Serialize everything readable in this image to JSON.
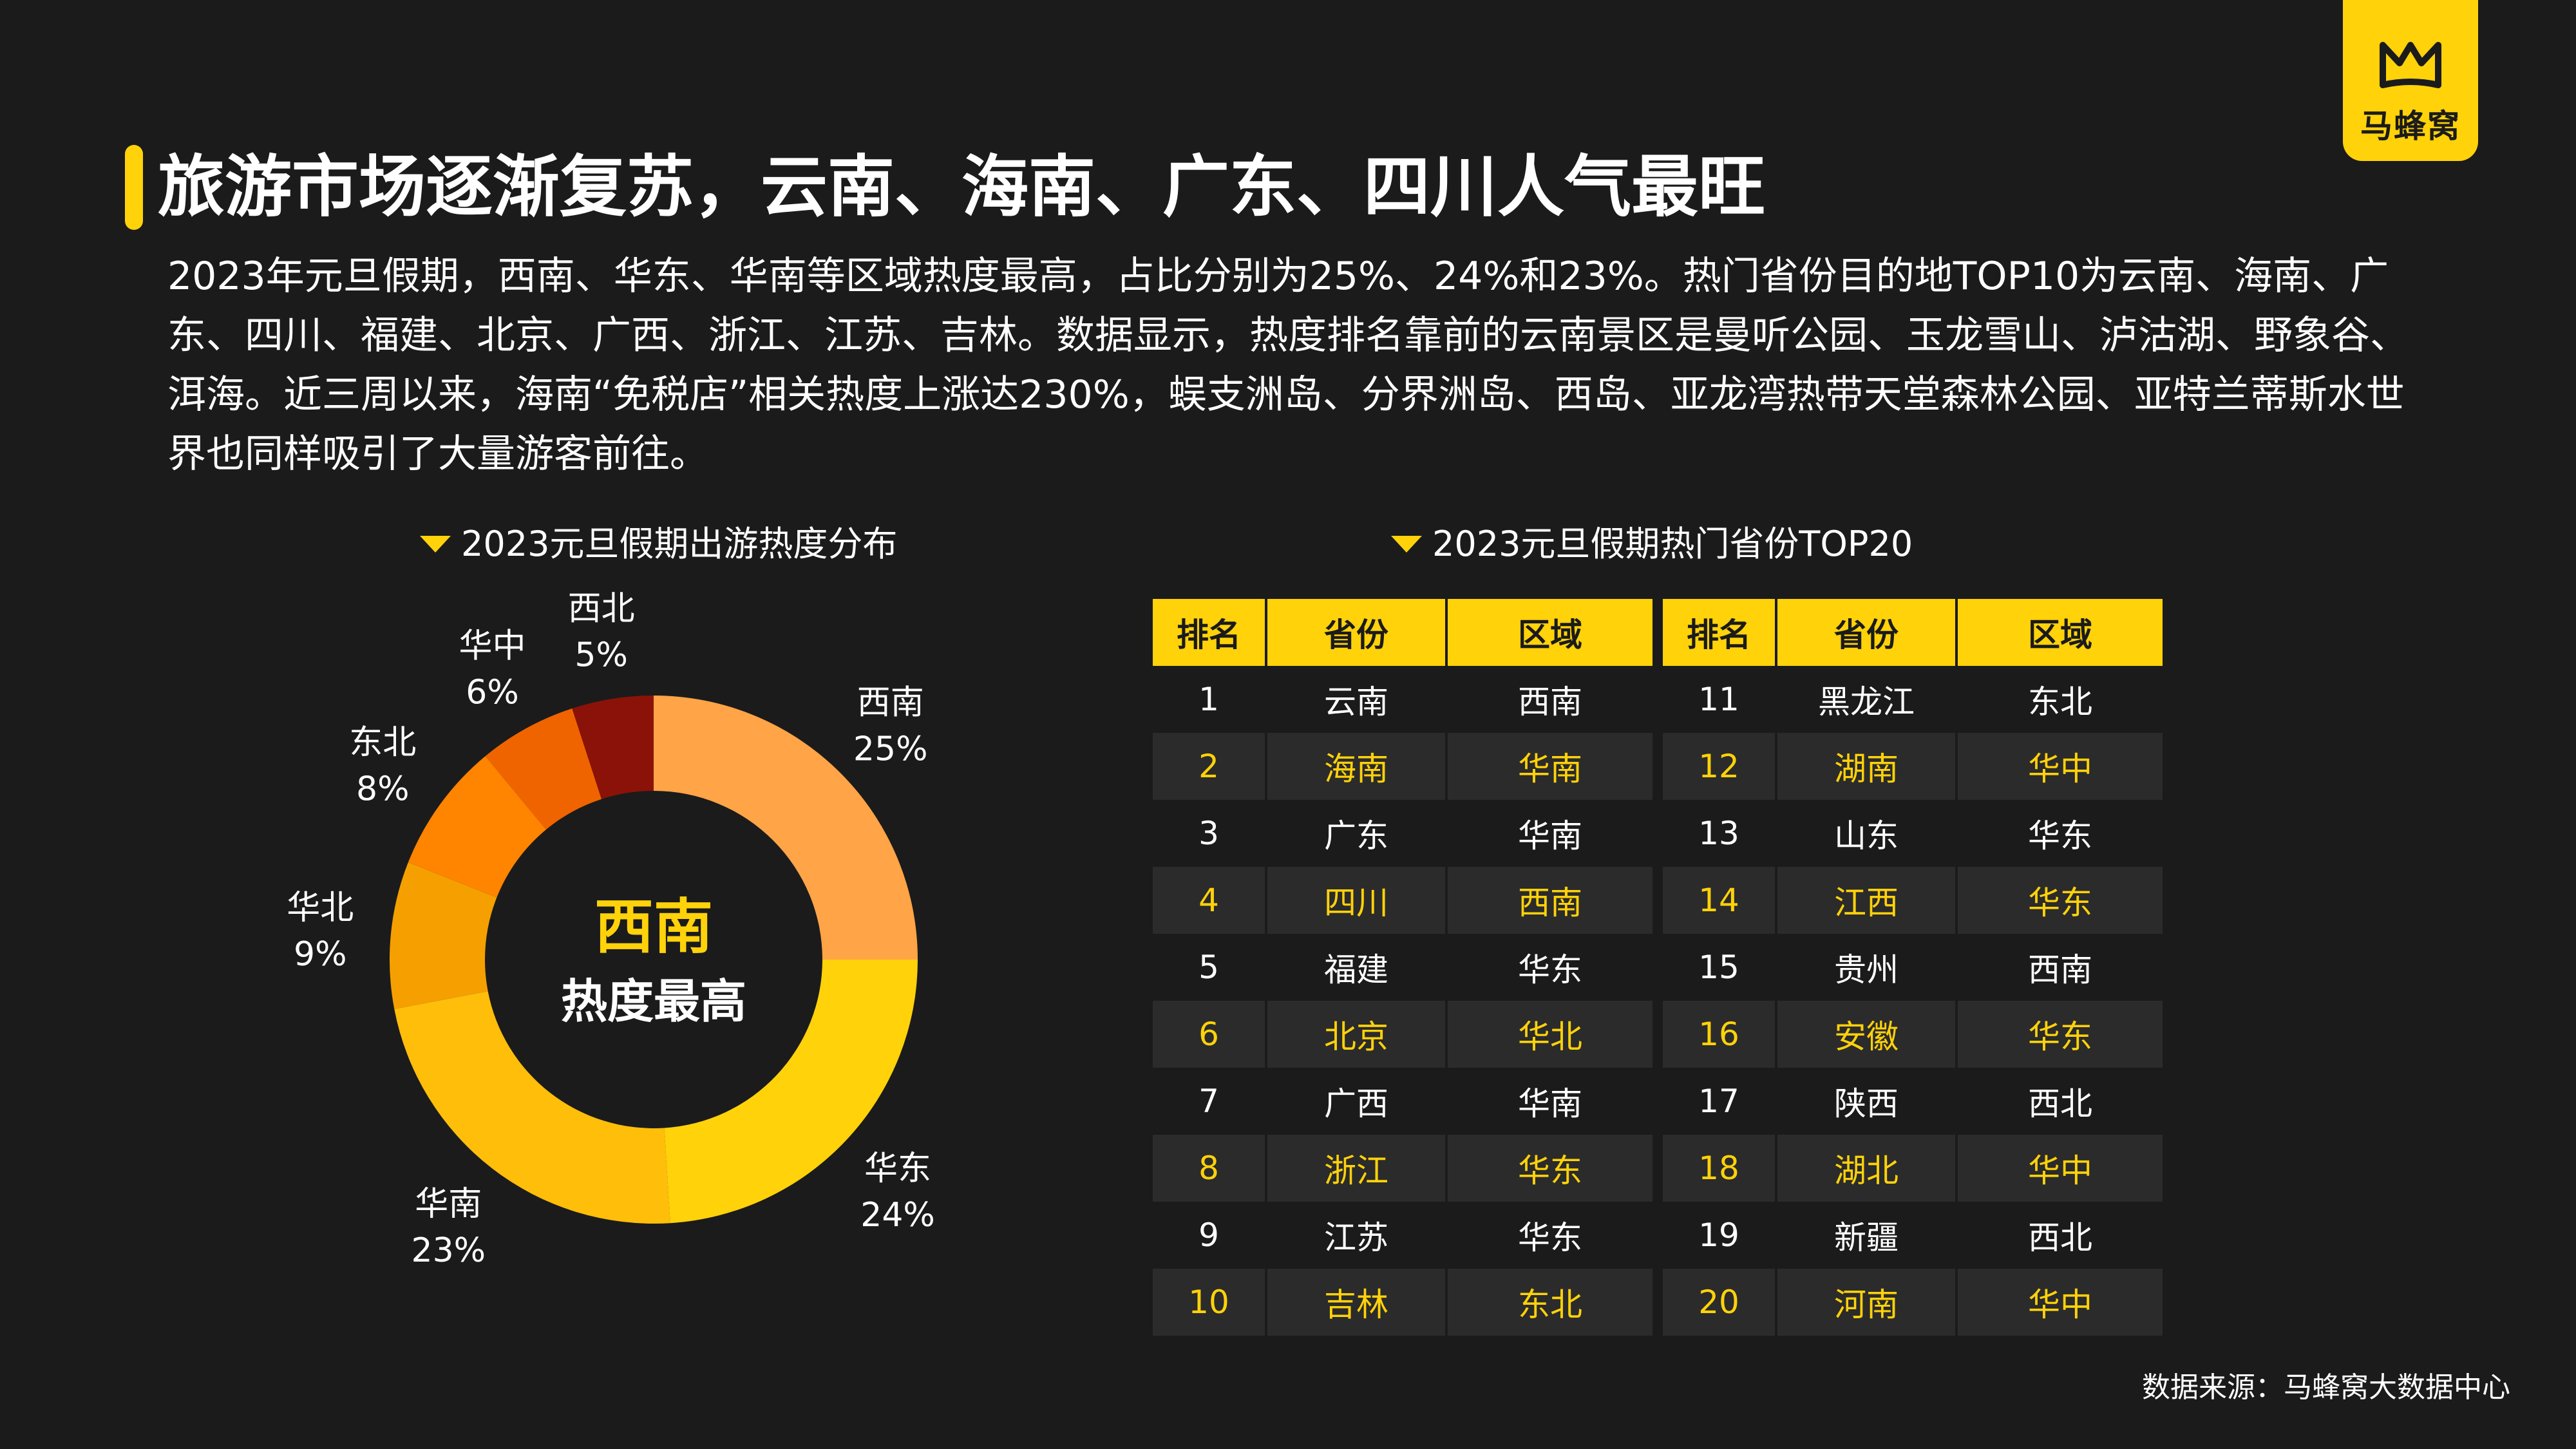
{
  "brand": {
    "logo_text": "马蜂窝",
    "icon": "mafengwo-m-icon",
    "accent": "#ffd20a"
  },
  "title": "旅游市场逐渐复苏，云南、海南、广东、四川人气最旺",
  "summary": "2023年元旦假期，西南、华东、华南等区域热度最高，占比分别为25%、24%和23%。热门省份目的地TOP10为云南、海南、广东、四川、福建、北京、广西、浙江、江苏、吉林。数据显示，热度排名靠前的云南景区是曼听公园、玉龙雪山、泸沽湖、野象谷、洱海。近三周以来，海南“免税店”相关热度上涨达230%，蜈支洲岛、分界洲岛、西岛、亚龙湾热带天堂森林公园、亚特兰蒂斯水世界也同样吸引了大量游客前往。",
  "source": "数据来源：马蜂窝大数据中心",
  "chart_data": [
    {
      "type": "pie",
      "title": "2023元旦假期出游热度分布",
      "center_main": "西南",
      "center_sub": "热度最高",
      "unit": "%",
      "slices": [
        {
          "name": "西南",
          "value": 25,
          "color": "#ffa447"
        },
        {
          "name": "华东",
          "value": 24,
          "color": "#ffd20a"
        },
        {
          "name": "华南",
          "value": 23,
          "color": "#ffbe0a"
        },
        {
          "name": "华北",
          "value": 9,
          "color": "#f5a000"
        },
        {
          "name": "东北",
          "value": 8,
          "color": "#ff8400"
        },
        {
          "name": "华中",
          "value": 6,
          "color": "#f06400"
        },
        {
          "name": "西北",
          "value": 5,
          "color": "#8b1208"
        }
      ]
    },
    {
      "type": "table",
      "title": "2023元旦假期热门省份TOP20",
      "columns": [
        "排名",
        "省份",
        "区域"
      ],
      "rows": [
        [
          "1",
          "云南",
          "西南"
        ],
        [
          "2",
          "海南",
          "华南"
        ],
        [
          "3",
          "广东",
          "华南"
        ],
        [
          "4",
          "四川",
          "西南"
        ],
        [
          "5",
          "福建",
          "华东"
        ],
        [
          "6",
          "北京",
          "华北"
        ],
        [
          "7",
          "广西",
          "华南"
        ],
        [
          "8",
          "浙江",
          "华东"
        ],
        [
          "9",
          "江苏",
          "华东"
        ],
        [
          "10",
          "吉林",
          "东北"
        ],
        [
          "11",
          "黑龙江",
          "东北"
        ],
        [
          "12",
          "湖南",
          "华中"
        ],
        [
          "13",
          "山东",
          "华东"
        ],
        [
          "14",
          "江西",
          "华东"
        ],
        [
          "15",
          "贵州",
          "西南"
        ],
        [
          "16",
          "安徽",
          "华东"
        ],
        [
          "17",
          "陕西",
          "西北"
        ],
        [
          "18",
          "湖北",
          "华中"
        ],
        [
          "19",
          "新疆",
          "西北"
        ],
        [
          "20",
          "河南",
          "华中"
        ]
      ]
    }
  ]
}
